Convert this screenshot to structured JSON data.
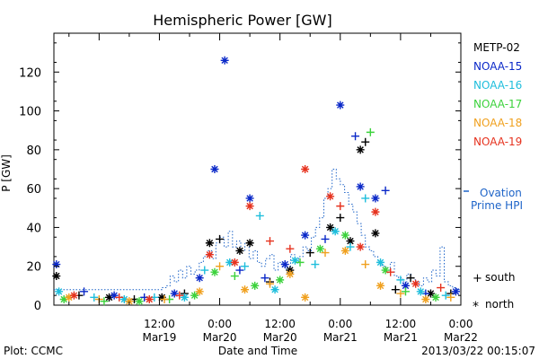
{
  "chart_data": {
    "type": "scatter",
    "title": "Hemispheric Power [GW]",
    "xlabel": "Date and Time",
    "ylabel": "P [GW]",
    "ylim": [
      0,
      140
    ],
    "x_range": [
      "2013-03-18 15:00",
      "2013-03-22 00:00"
    ],
    "grid": false,
    "legend_position": "right",
    "yticks": [
      0,
      20,
      40,
      60,
      80,
      100,
      120
    ],
    "xticks": [
      {
        "time": "2013-03-19 12:00",
        "line1": "12:00",
        "line2": "Mar19"
      },
      {
        "time": "2013-03-20 00:00",
        "line1": "0:00",
        "line2": "Mar20"
      },
      {
        "time": "2013-03-20 12:00",
        "line1": "12:00",
        "line2": "Mar20"
      },
      {
        "time": "2013-03-21 00:00",
        "line1": "0:00",
        "line2": "Mar21"
      },
      {
        "time": "2013-03-21 12:00",
        "line1": "12:00",
        "line2": "Mar21"
      },
      {
        "time": "2013-03-22 00:00",
        "line1": "0:00",
        "line2": "Mar22"
      }
    ],
    "series": [
      {
        "name": "METP-02",
        "color": "#000000",
        "points": [
          [
            "2013-03-18 15:30",
            15,
            "north"
          ],
          [
            "2013-03-18 20:00",
            5,
            "south"
          ],
          [
            "2013-03-19 02:00",
            4,
            "north"
          ],
          [
            "2013-03-19 07:00",
            3,
            "south"
          ],
          [
            "2013-03-19 12:30",
            4,
            "north"
          ],
          [
            "2013-03-19 17:00",
            6,
            "south"
          ],
          [
            "2013-03-19 22:00",
            32,
            "north"
          ],
          [
            "2013-03-20 00:00",
            34,
            "south"
          ],
          [
            "2013-03-20 04:00",
            28,
            "north"
          ],
          [
            "2013-03-20 06:00",
            32,
            "north"
          ],
          [
            "2013-03-20 10:00",
            12,
            "south"
          ],
          [
            "2013-03-20 14:00",
            18,
            "north"
          ],
          [
            "2013-03-20 18:00",
            27,
            "south"
          ],
          [
            "2013-03-20 22:00",
            40,
            "north"
          ],
          [
            "2013-03-21 00:00",
            45,
            "south"
          ],
          [
            "2013-03-21 02:00",
            33,
            "north"
          ],
          [
            "2013-03-21 04:00",
            80,
            "north"
          ],
          [
            "2013-03-21 05:00",
            84,
            "south"
          ],
          [
            "2013-03-21 07:00",
            37,
            "north"
          ],
          [
            "2013-03-21 11:00",
            8,
            "south"
          ],
          [
            "2013-03-21 14:00",
            14,
            "south"
          ],
          [
            "2013-03-21 18:00",
            6,
            "north"
          ],
          [
            "2013-03-21 22:00",
            6,
            "south"
          ]
        ]
      },
      {
        "name": "NOAA-15",
        "color": "#0a28c8",
        "points": [
          [
            "2013-03-18 15:30",
            21,
            "north"
          ],
          [
            "2013-03-18 21:00",
            7,
            "south"
          ],
          [
            "2013-03-19 03:00",
            5,
            "north"
          ],
          [
            "2013-03-19 09:00",
            4,
            "south"
          ],
          [
            "2013-03-19 15:00",
            6,
            "north"
          ],
          [
            "2013-03-19 20:00",
            14,
            "north"
          ],
          [
            "2013-03-19 23:00",
            70,
            "north"
          ],
          [
            "2013-03-20 01:00",
            126,
            "north"
          ],
          [
            "2013-03-20 04:00",
            18,
            "south"
          ],
          [
            "2013-03-20 06:00",
            55,
            "north"
          ],
          [
            "2013-03-20 09:00",
            14,
            "south"
          ],
          [
            "2013-03-20 13:00",
            21,
            "north"
          ],
          [
            "2013-03-20 17:00",
            36,
            "north"
          ],
          [
            "2013-03-20 21:00",
            34,
            "south"
          ],
          [
            "2013-03-21 00:00",
            103,
            "north"
          ],
          [
            "2013-03-21 03:00",
            87,
            "south"
          ],
          [
            "2013-03-21 04:00",
            61,
            "north"
          ],
          [
            "2013-03-21 07:00",
            55,
            "north"
          ],
          [
            "2013-03-21 09:00",
            59,
            "south"
          ],
          [
            "2013-03-21 13:00",
            10,
            "north"
          ],
          [
            "2013-03-21 17:00",
            6,
            "south"
          ],
          [
            "2013-03-21 23:00",
            7,
            "north"
          ]
        ]
      },
      {
        "name": "NOAA-16",
        "color": "#1ebedc",
        "points": [
          [
            "2013-03-18 16:00",
            7,
            "north"
          ],
          [
            "2013-03-18 23:00",
            4,
            "south"
          ],
          [
            "2013-03-19 05:00",
            3,
            "north"
          ],
          [
            "2013-03-19 11:00",
            4,
            "south"
          ],
          [
            "2013-03-19 17:00",
            4,
            "north"
          ],
          [
            "2013-03-19 21:00",
            18,
            "south"
          ],
          [
            "2013-03-20 02:00",
            22,
            "north"
          ],
          [
            "2013-03-20 05:00",
            20,
            "south"
          ],
          [
            "2013-03-20 08:00",
            46,
            "south"
          ],
          [
            "2013-03-20 11:00",
            8,
            "north"
          ],
          [
            "2013-03-20 15:00",
            23,
            "north"
          ],
          [
            "2013-03-20 19:00",
            21,
            "south"
          ],
          [
            "2013-03-20 23:00",
            38,
            "north"
          ],
          [
            "2013-03-21 02:00",
            30,
            "south"
          ],
          [
            "2013-03-21 05:00",
            55,
            "south"
          ],
          [
            "2013-03-21 08:00",
            22,
            "north"
          ],
          [
            "2013-03-21 12:00",
            13,
            "south"
          ],
          [
            "2013-03-21 16:00",
            7,
            "north"
          ],
          [
            "2013-03-21 21:00",
            5,
            "south"
          ]
        ]
      },
      {
        "name": "NOAA-17",
        "color": "#3cd23c",
        "points": [
          [
            "2013-03-18 17:00",
            3,
            "north"
          ],
          [
            "2013-03-19 01:00",
            2,
            "south"
          ],
          [
            "2013-03-19 08:00",
            2,
            "north"
          ],
          [
            "2013-03-19 14:00",
            3,
            "south"
          ],
          [
            "2013-03-19 19:00",
            5,
            "north"
          ],
          [
            "2013-03-19 23:00",
            17,
            "north"
          ],
          [
            "2013-03-20 03:00",
            15,
            "south"
          ],
          [
            "2013-03-20 07:00",
            10,
            "north"
          ],
          [
            "2013-03-20 12:00",
            13,
            "north"
          ],
          [
            "2013-03-20 16:00",
            22,
            "south"
          ],
          [
            "2013-03-20 20:00",
            29,
            "north"
          ],
          [
            "2013-03-21 01:00",
            36,
            "north"
          ],
          [
            "2013-03-21 06:00",
            89,
            "south"
          ],
          [
            "2013-03-21 09:00",
            18,
            "north"
          ],
          [
            "2013-03-21 13:00",
            7,
            "south"
          ],
          [
            "2013-03-21 19:00",
            4,
            "north"
          ]
        ]
      },
      {
        "name": "NOAA-18",
        "color": "#f0a01e",
        "points": [
          [
            "2013-03-18 18:00",
            4,
            "north"
          ],
          [
            "2013-03-19 00:00",
            3,
            "south"
          ],
          [
            "2013-03-19 06:00",
            2,
            "north"
          ],
          [
            "2013-03-19 13:00",
            3,
            "south"
          ],
          [
            "2013-03-19 20:00",
            7,
            "north"
          ],
          [
            "2013-03-20 00:00",
            20,
            "south"
          ],
          [
            "2013-03-20 05:00",
            8,
            "north"
          ],
          [
            "2013-03-20 10:00",
            11,
            "south"
          ],
          [
            "2013-03-20 14:00",
            16,
            "north"
          ],
          [
            "2013-03-20 17:00",
            4,
            "north"
          ],
          [
            "2013-03-20 21:00",
            27,
            "south"
          ],
          [
            "2013-03-21 01:00",
            28,
            "north"
          ],
          [
            "2013-03-21 05:00",
            21,
            "south"
          ],
          [
            "2013-03-21 08:00",
            10,
            "north"
          ],
          [
            "2013-03-21 12:00",
            6,
            "south"
          ],
          [
            "2013-03-21 17:00",
            3,
            "north"
          ],
          [
            "2013-03-21 22:00",
            4,
            "south"
          ]
        ]
      },
      {
        "name": "NOAA-19",
        "color": "#e6321e",
        "points": [
          [
            "2013-03-18 19:00",
            5,
            "north"
          ],
          [
            "2013-03-19 04:00",
            4,
            "south"
          ],
          [
            "2013-03-19 10:00",
            3,
            "north"
          ],
          [
            "2013-03-19 16:00",
            5,
            "south"
          ],
          [
            "2013-03-19 22:00",
            26,
            "north"
          ],
          [
            "2013-03-20 03:00",
            22,
            "north"
          ],
          [
            "2013-03-20 06:00",
            51,
            "north"
          ],
          [
            "2013-03-20 10:00",
            33,
            "south"
          ],
          [
            "2013-03-20 14:00",
            29,
            "south"
          ],
          [
            "2013-03-20 17:00",
            70,
            "north"
          ],
          [
            "2013-03-20 22:00",
            56,
            "north"
          ],
          [
            "2013-03-21 00:00",
            51,
            "south"
          ],
          [
            "2013-03-21 04:00",
            30,
            "north"
          ],
          [
            "2013-03-21 07:00",
            48,
            "north"
          ],
          [
            "2013-03-21 10:00",
            17,
            "south"
          ],
          [
            "2013-03-21 15:00",
            11,
            "north"
          ],
          [
            "2013-03-21 20:00",
            9,
            "south"
          ]
        ]
      }
    ],
    "ovation_prime_hpi": {
      "name": "Ovation Prime HPI",
      "color": "#1e64c8",
      "values": [
        8,
        8,
        8,
        8,
        8,
        8,
        8,
        8,
        8,
        8,
        8,
        8,
        8,
        8,
        8,
        8,
        8,
        8,
        8,
        8,
        8,
        8,
        8,
        8,
        8,
        8,
        9,
        10,
        15,
        12,
        18,
        14,
        20,
        16,
        18,
        22,
        25,
        28,
        24,
        32,
        35,
        30,
        38,
        30,
        33,
        28,
        32,
        24,
        28,
        22,
        20,
        24,
        26,
        18,
        22,
        20,
        18,
        26,
        22,
        25,
        30,
        28,
        35,
        40,
        45,
        55,
        60,
        70,
        65,
        62,
        58,
        52,
        48,
        42,
        36,
        30,
        28,
        25,
        22,
        20,
        18,
        22,
        15,
        14,
        12,
        16,
        14,
        12,
        10,
        14,
        12,
        18,
        15,
        30,
        12,
        10,
        9,
        8
      ]
    }
  },
  "legend": {
    "items": [
      "METP-02",
      "NOAA-15",
      "NOAA-16",
      "NOAA-17",
      "NOAA-18",
      "NOAA-19"
    ],
    "ovation_line1": "Ovation",
    "ovation_line2": "Prime HPI",
    "south_label": "south",
    "north_label": "north"
  },
  "footer": {
    "plot_label": "Plot: CCMC",
    "timestamp": "2013/03/22 00:15:07"
  }
}
